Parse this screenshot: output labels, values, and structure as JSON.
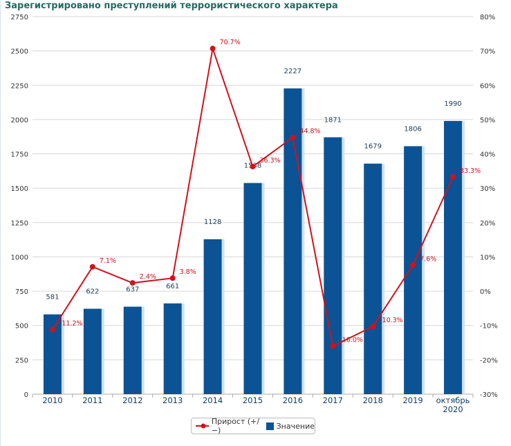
{
  "chart_data": {
    "type": "bar+line",
    "title": "Зарегистрировано преступлений террористического характера",
    "categories": [
      "2010",
      "2011",
      "2012",
      "2013",
      "2014",
      "2015",
      "2016",
      "2017",
      "2018",
      "2019",
      "октябрь 2020"
    ],
    "series": [
      {
        "name": "Значение",
        "type": "bar",
        "axis": "left",
        "color": "#0b5394",
        "values": [
          581,
          622,
          637,
          661,
          1128,
          1538,
          2227,
          1871,
          1679,
          1806,
          1990
        ]
      },
      {
        "name": "Прирост (+/−)",
        "type": "line",
        "axis": "right",
        "color": "#d0121b",
        "values": [
          -11.2,
          7.1,
          2.4,
          3.8,
          70.7,
          36.3,
          44.8,
          -16.0,
          -10.3,
          7.6,
          33.3
        ]
      }
    ],
    "ylim_left": [
      0,
      2750
    ],
    "yticks_left": [
      0,
      250,
      500,
      750,
      1000,
      1250,
      1500,
      1750,
      2000,
      2250,
      2500,
      2750
    ],
    "ylim_right": [
      -30,
      80
    ],
    "yticks_right": [
      "-30%",
      "-20%",
      "-10%",
      "0%",
      "10%",
      "20%",
      "30%",
      "40%",
      "50%",
      "60%",
      "70%",
      "80%"
    ],
    "grid": true,
    "legend": "bottom"
  }
}
